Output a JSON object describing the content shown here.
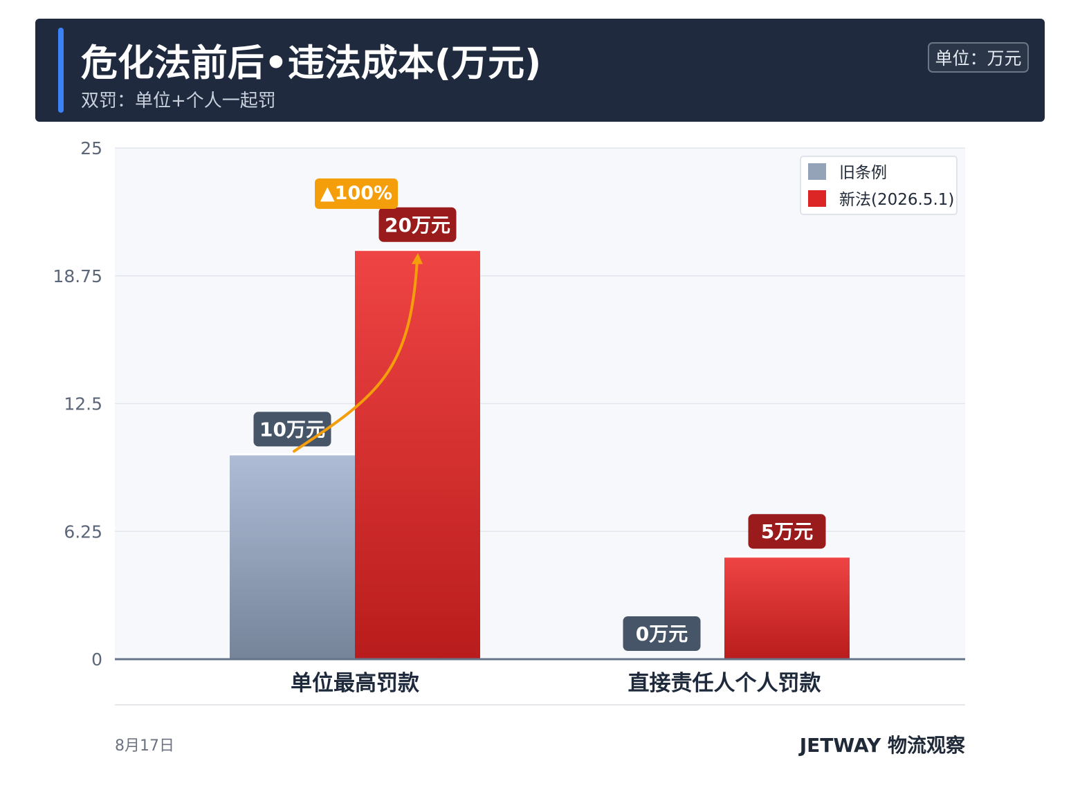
{
  "header": {
    "title": "危化法前后•违法成本(万元)",
    "subtitle": "双罚：单位+个人一起罚",
    "unit_badge": "单位：万元"
  },
  "chart_data": {
    "type": "bar",
    "categories": [
      "单位最高罚款",
      "直接责任人个人罚款"
    ],
    "series": [
      {
        "name": "旧条例",
        "values": [
          10,
          0
        ],
        "labels": [
          "10万元",
          "0万元"
        ],
        "color": "#94a3b8"
      },
      {
        "name": "新法(2026.5.1)",
        "values": [
          20,
          5
        ],
        "labels": [
          "20万元",
          "5万元"
        ],
        "color": "#dc2626"
      }
    ],
    "yticks": [
      "0",
      "6.25",
      "12.5",
      "18.75",
      "25"
    ],
    "ylim": [
      0,
      25
    ],
    "grid": true,
    "legend_position": "top-right",
    "annotation": {
      "text": "▲100%",
      "color": "#f59e0b"
    }
  },
  "footer": {
    "date": "8月17日",
    "brand": "JETWAY 物流观察"
  }
}
